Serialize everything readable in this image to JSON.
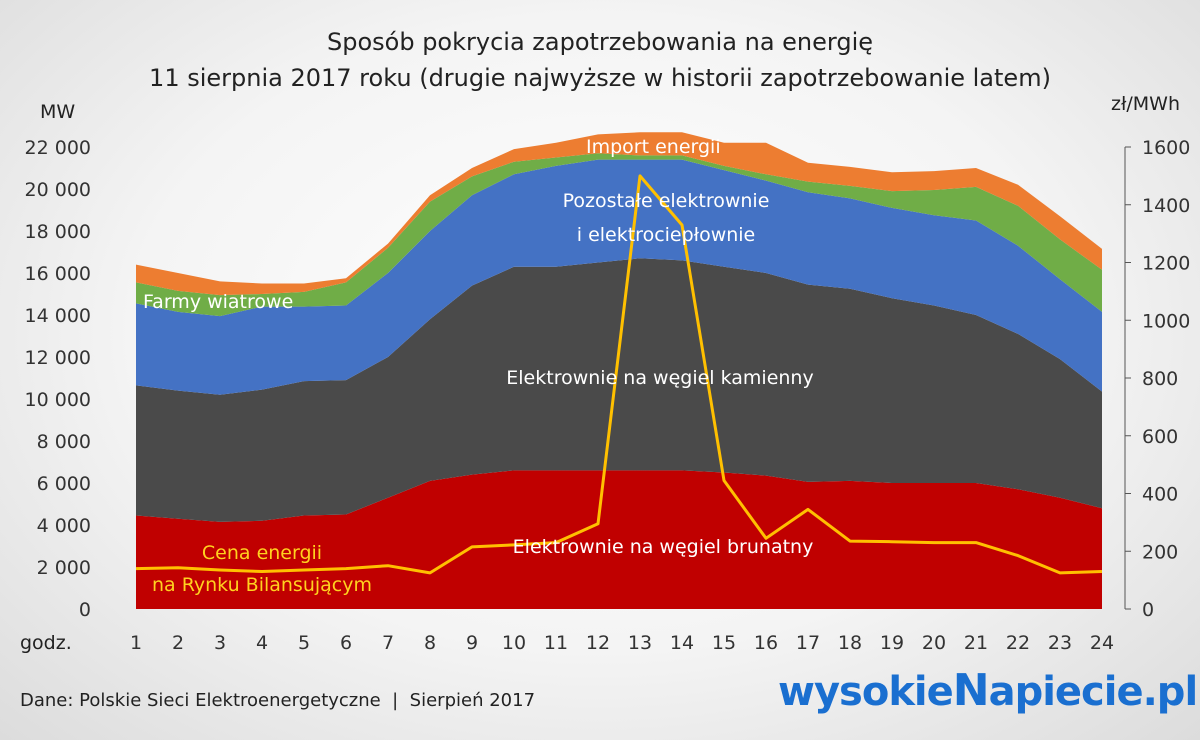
{
  "chart_data": {
    "type": "area",
    "title": "Sposób pokrycia zapotrzebowania na energię",
    "subtitle": "11 sierpnia 2017 roku (drugie najwyższe w historii zapotrzebowanie latem)",
    "ylabel": "MW",
    "ylabel_right": "zł/MWh",
    "xlabel": "godz.",
    "x": [
      1,
      2,
      3,
      4,
      5,
      6,
      7,
      8,
      9,
      10,
      11,
      12,
      13,
      14,
      15,
      16,
      17,
      18,
      19,
      20,
      21,
      22,
      23,
      24
    ],
    "ylim": [
      0,
      22000
    ],
    "yticks": [
      0,
      2000,
      4000,
      6000,
      8000,
      10000,
      12000,
      14000,
      16000,
      18000,
      20000,
      22000
    ],
    "ytick_labels": [
      "0",
      "2 000",
      "4 000",
      "6 000",
      "8 000",
      "10 000",
      "12 000",
      "14 000",
      "16 000",
      "18 000",
      "20 000",
      "22 000"
    ],
    "y2lim": [
      0,
      1600
    ],
    "y2ticks": [
      0,
      200,
      400,
      600,
      800,
      1000,
      1200,
      1400,
      1600
    ],
    "y2tick_labels": [
      "0",
      "200",
      "400",
      "600",
      "800",
      "1000",
      "1200",
      "1400",
      "1600"
    ],
    "grid": false,
    "stacked": true,
    "series": [
      {
        "name": "Elektrownie na węgiel brunatny",
        "color": "#C00000",
        "values": [
          4450,
          4300,
          4150,
          4200,
          4450,
          4500,
          5300,
          6100,
          6400,
          6600,
          6600,
          6600,
          6600,
          6600,
          6500,
          6350,
          6050,
          6100,
          6000,
          6000,
          6000,
          5700,
          5300,
          4800
        ]
      },
      {
        "name": "Elektrownie na węgiel kamienny",
        "color": "#4A4A4A",
        "values": [
          6200,
          6100,
          6050,
          6250,
          6400,
          6400,
          6700,
          7700,
          9000,
          9700,
          9700,
          9900,
          10100,
          10000,
          9800,
          9650,
          9400,
          9150,
          8800,
          8450,
          8000,
          7400,
          6600,
          5550
        ]
      },
      {
        "name": "Pozostałe elektrownie i elektrociepłownie",
        "color": "#4472C4",
        "values": [
          3900,
          3750,
          3750,
          3950,
          3550,
          3550,
          4000,
          4200,
          4300,
          4400,
          4800,
          4900,
          4700,
          4800,
          4600,
          4400,
          4400,
          4300,
          4300,
          4300,
          4500,
          4200,
          3800,
          3800
        ]
      },
      {
        "name": "Farmy wiatrowe",
        "color": "#70AD47",
        "values": [
          1000,
          1000,
          1000,
          600,
          700,
          1100,
          1200,
          1400,
          900,
          600,
          400,
          300,
          200,
          200,
          200,
          300,
          500,
          600,
          800,
          1200,
          1600,
          1900,
          1900,
          2000
        ]
      },
      {
        "name": "Import energii",
        "color": "#ED7D31",
        "values": [
          850,
          850,
          650,
          500,
          400,
          200,
          200,
          300,
          400,
          600,
          700,
          900,
          1100,
          1100,
          1100,
          1500,
          900,
          900,
          900,
          900,
          900,
          1000,
          1100,
          1000
        ]
      }
    ],
    "price_series": {
      "name": "Cena energii na Rynku Bilansującym",
      "axis": "right",
      "color": "#FFC000",
      "values": [
        140,
        143,
        135,
        130,
        135,
        140,
        150,
        125,
        215,
        222,
        230,
        295,
        1500,
        1330,
        445,
        245,
        345,
        235,
        233,
        230,
        230,
        185,
        125,
        130
      ]
    }
  },
  "labels": {
    "wind": "Farmy wiatrowe",
    "import": "Import energii",
    "other_line1": "Pozostałe elektrownie",
    "other_line2": "i elektrociepłownie",
    "hard_coal": "Elektrownie na węgiel kamienny",
    "lignite": "Elektrownie na węgiel brunatny",
    "price_line1": "Cena energii",
    "price_line2": "na Rynku Bilansującym"
  },
  "footer": {
    "source": "Dane: Polskie Sieci Elektroenergetyczne  |  Sierpień 2017",
    "logo_left": "wysokie",
    "logo_bolt": "N",
    "logo_right": "apiecie.pl"
  }
}
